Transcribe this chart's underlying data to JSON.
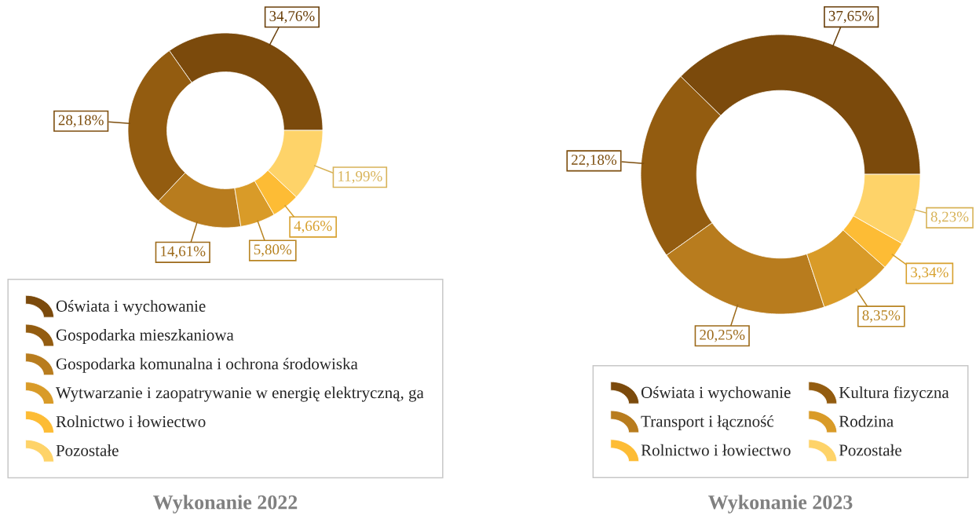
{
  "chart_data": [
    {
      "type": "donut",
      "title": "Wykonanie 2022",
      "categories": [
        "Oświata i wychowanie",
        "Gospodarka mieszkaniowa",
        "Gospodarka komunalna i ochrona środowiska",
        "Wytwarzanie i zaopatrywanie w energię elektryczną, ga",
        "Rolnictwo i łowiectwo",
        "Pozostałe"
      ],
      "values": [
        34.76,
        28.18,
        14.61,
        5.8,
        4.66,
        11.99
      ],
      "colors": [
        "#7b4a0c",
        "#935c10",
        "#b87c1e",
        "#d99b28",
        "#fdbc35",
        "#fed369"
      ],
      "value_labels": [
        "34,76%",
        "28,18%",
        "14,61%",
        "5,80%",
        "4,66%",
        "11,99%"
      ],
      "legend": "bottom"
    },
    {
      "type": "donut",
      "title": "Wykonanie 2023",
      "categories": [
        "Oświata i wychowanie",
        "Kultura fizyczna",
        "Transport i łączność",
        "Rodzina",
        "Rolnictwo i łowiectwo",
        "Pozostałe"
      ],
      "values": [
        37.65,
        22.18,
        20.25,
        8.35,
        3.34,
        8.23
      ],
      "colors": [
        "#7b4a0c",
        "#935c10",
        "#b87c1e",
        "#d99b28",
        "#fdbc35",
        "#fed369"
      ],
      "value_labels": [
        "37,65%",
        "22,18%",
        "20,25%",
        "8,35%",
        "3,34%",
        "8,23%"
      ],
      "legend": "bottom"
    }
  ]
}
